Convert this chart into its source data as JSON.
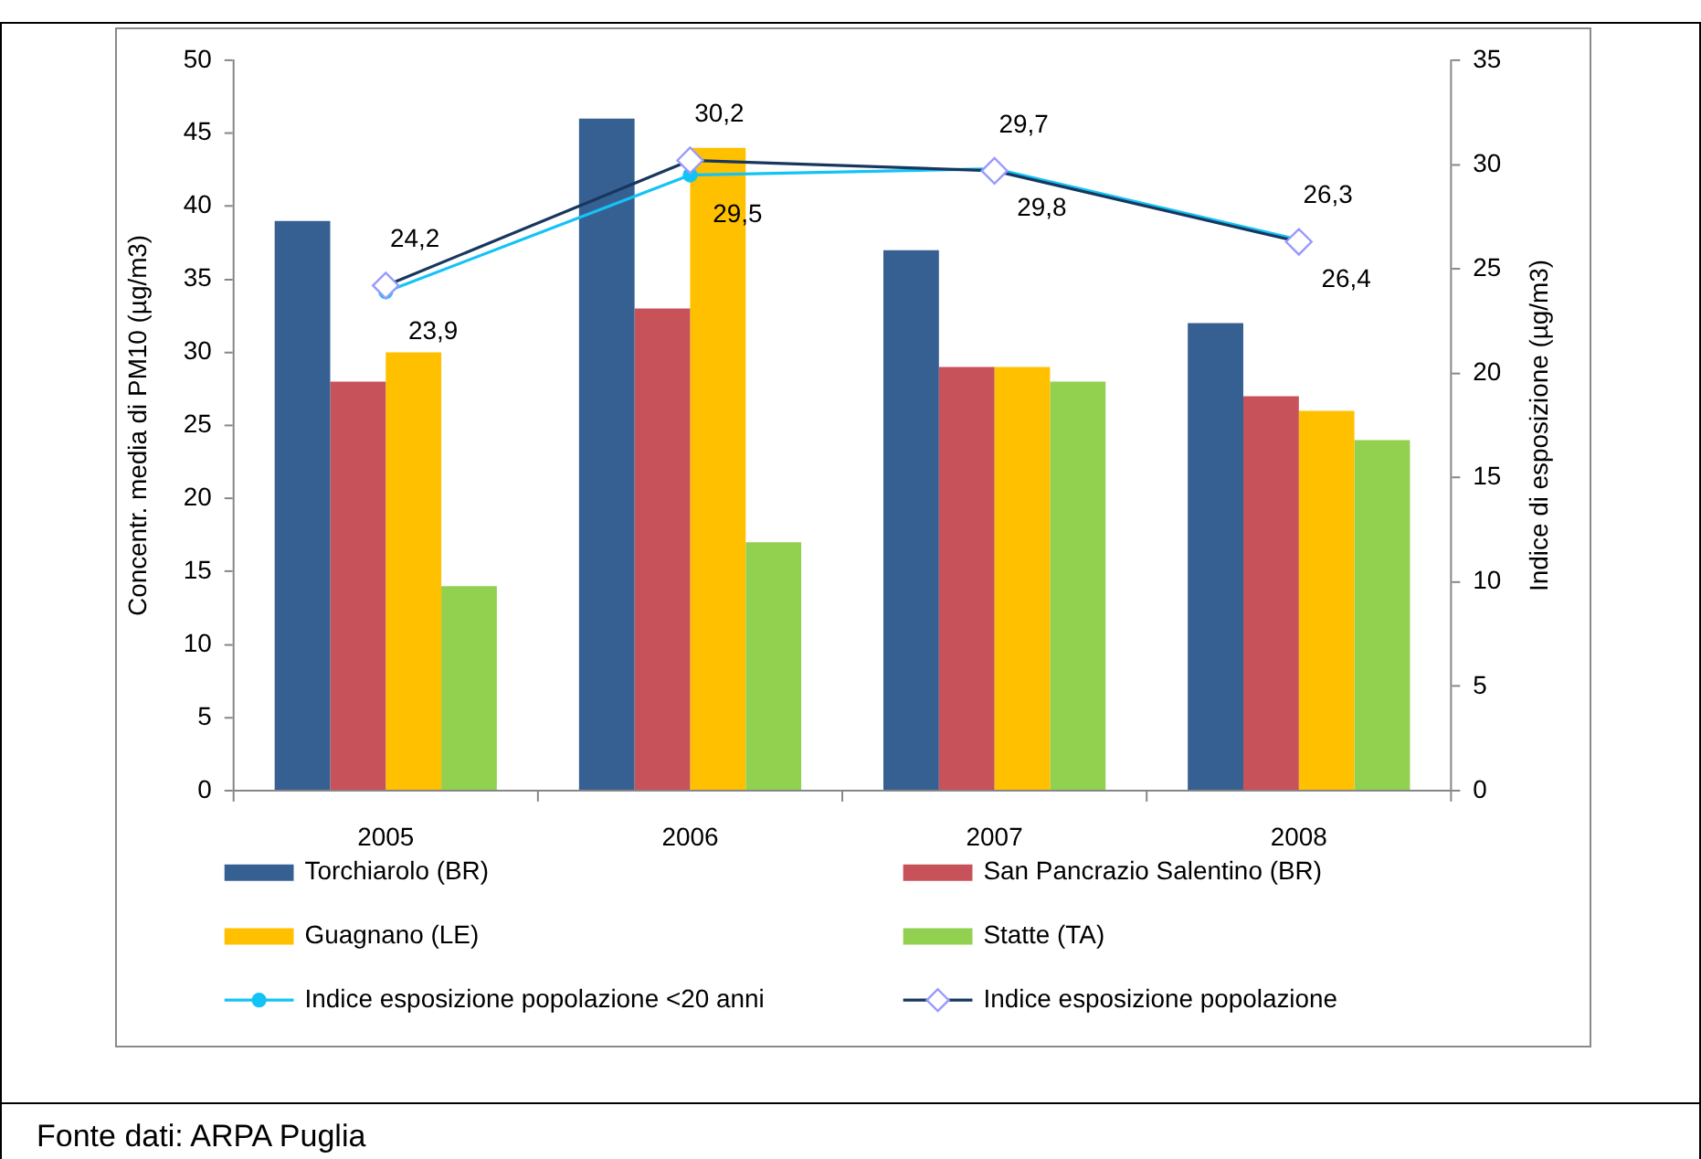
{
  "chart_data": {
    "type": "bar",
    "categories": [
      "2005",
      "2006",
      "2007",
      "2008"
    ],
    "ylabel": "Concentr. media di PM10 (µg/m3)",
    "y2label": "Indice di esposizione (µg/m3)",
    "ylim": [
      0,
      50
    ],
    "yticks": [
      0,
      5,
      10,
      15,
      20,
      25,
      30,
      35,
      40,
      45,
      50
    ],
    "y2lim": [
      0,
      35
    ],
    "y2ticks": [
      0,
      5,
      10,
      15,
      20,
      25,
      30,
      35
    ],
    "series": [
      {
        "name": "Torchiarolo (BR)",
        "color": "#376092",
        "values": [
          39,
          46,
          37,
          32
        ]
      },
      {
        "name": "San Pancrazio Salentino (BR)",
        "color": "#c8525a",
        "values": [
          28,
          33,
          29,
          27
        ]
      },
      {
        "name": "Guagnano (LE)",
        "color": "#ffc000",
        "values": [
          30,
          44,
          29,
          26
        ]
      },
      {
        "name": "Statte (TA)",
        "color": "#92d050",
        "values": [
          14,
          17,
          28,
          24
        ]
      },
      {
        "name": "Indice esposizione popolazione <20 anni",
        "type": "line",
        "axis": "y2",
        "color": "#14c3f5",
        "marker": "circle",
        "values": [
          23.9,
          29.5,
          29.8,
          26.4
        ],
        "value_labels": [
          "23,9",
          "29,5",
          "29,8",
          "26,4"
        ]
      },
      {
        "name": "Indice esposizione popolazione",
        "type": "line",
        "axis": "y2",
        "color": "#17375e",
        "colors": [
          "#9999ff",
          "#9999ff",
          "#9999ff",
          "#9999ff"
        ],
        "marker": "diamond",
        "values": [
          24.2,
          30.2,
          29.7,
          26.3
        ],
        "value_labels": [
          "24,2",
          "30,2",
          "29,7",
          "26,3"
        ]
      }
    ],
    "legend": "bottom",
    "annotations": [
      "Fonte dati: ARPA Puglia"
    ]
  }
}
